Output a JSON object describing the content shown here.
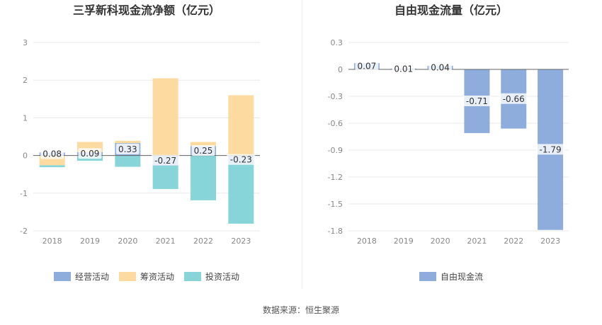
{
  "source_label": "数据来源：恒生聚源",
  "chart_data": [
    {
      "type": "bar",
      "stacked": true,
      "title": "三孚新科现金流净额（亿元）",
      "categories": [
        "2018",
        "2019",
        "2020",
        "2021",
        "2022",
        "2023"
      ],
      "ylim": [
        -2,
        3
      ],
      "yticks": [
        3,
        2,
        1,
        0,
        -1,
        -2
      ],
      "grid": true,
      "legend_position": "bottom",
      "series": [
        {
          "name": "经营活动",
          "color": "#8eaddd",
          "values": [
            0.08,
            0.09,
            0.33,
            -0.27,
            0.25,
            -0.23
          ],
          "labels": [
            "0.08",
            "0.09",
            "0.33",
            "-0.27",
            "0.25",
            "-0.23"
          ]
        },
        {
          "name": "筹资活动",
          "color": "#fddba0",
          "values": [
            -0.26,
            0.27,
            0.06,
            2.05,
            0.11,
            1.6
          ]
        },
        {
          "name": "投资活动",
          "color": "#88d5d9",
          "values": [
            -0.05,
            -0.14,
            -0.3,
            -0.62,
            -1.19,
            -1.58
          ]
        }
      ]
    },
    {
      "type": "bar",
      "title": "自由现金流量（亿元）",
      "categories": [
        "2018",
        "2019",
        "2020",
        "2021",
        "2022",
        "2023"
      ],
      "ylim": [
        -1.8,
        0.3
      ],
      "yticks": [
        0.3,
        0,
        -0.3,
        -0.6,
        -0.9,
        -1.2,
        -1.5,
        -1.8
      ],
      "ytick_labels": [
        "0.3",
        "0",
        "-0.3",
        "-0.6",
        "-0.9",
        "-1.2",
        "-1.5",
        "-1.8"
      ],
      "grid": true,
      "legend_position": "bottom",
      "series": [
        {
          "name": "自由现金流",
          "color": "#8eaddd",
          "values": [
            0.07,
            0.01,
            0.04,
            -0.71,
            -0.66,
            -1.79
          ],
          "labels": [
            "0.07",
            "0.01",
            "0.04",
            "-0.71",
            "-0.66",
            "-1.79"
          ]
        }
      ]
    }
  ]
}
